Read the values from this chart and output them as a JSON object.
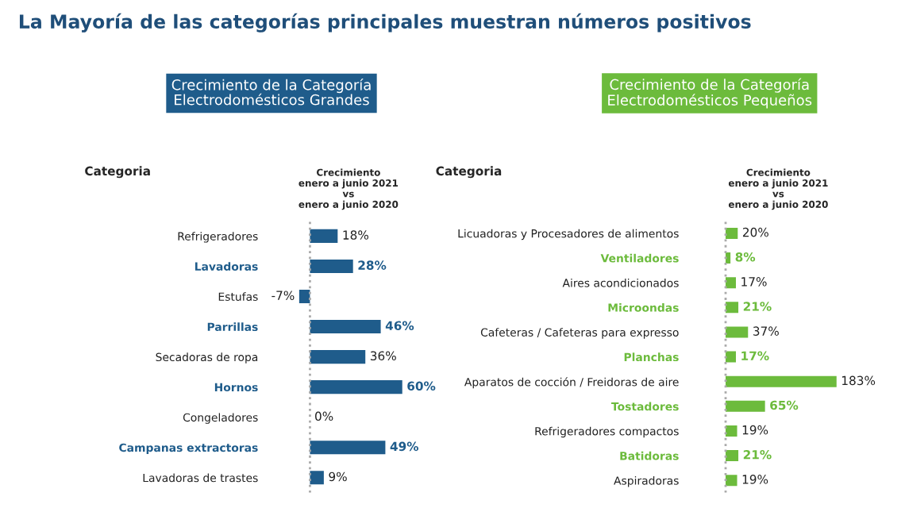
{
  "chart_data": [
    {
      "type": "bar",
      "orientation": "horizontal",
      "title": "Crecimiento de la Categoría\nElectrodomésticos Grandes",
      "xlabel": "Crecimiento\nenero a junio 2021\nvs\nenero a junio 2020",
      "ylabel": "Categoria",
      "annotations": [
        "La Mayoría de las categorías principales muestran números positivos"
      ],
      "categories": [
        "Refrigeradores",
        "Lavadoras",
        "Estufas",
        "Parrillas",
        "Secadoras de ropa",
        "Hornos",
        "Congeladores",
        "Campanas extractoras",
        "Lavadoras de trastes"
      ],
      "series": [
        {
          "color": "#1f5c8b",
          "values": [
            18,
            28,
            -7,
            46,
            36,
            60,
            0,
            49,
            9
          ],
          "value_labels": [
            "18%",
            "28%",
            "-7%",
            "46%",
            "36%",
            "60%",
            "0%",
            "49%",
            "9%"
          ]
        }
      ],
      "ref_lines": [
        {
          "axis": "x",
          "value": 0,
          "color": "#aaaaaa",
          "line_style": "dotted"
        }
      ],
      "tick_labels": "y",
      "grid": false,
      "legend": false
    },
    {
      "type": "bar",
      "orientation": "horizontal",
      "title": "Crecimiento de la Categoría\nElectrodomésticos Pequeños",
      "xlabel": "Crecimiento\nenero a junio 2021\nvs\nenero a junio 2020",
      "ylabel": "Categoria",
      "categories": [
        "Licuadoras y Procesadores de alimentos",
        "Ventiladores",
        "Aires acondicionados",
        "Microondas",
        "Cafeteras / Cafeteras para expresso",
        "Planchas",
        "Aparatos de cocción / Freidoras de aire",
        "Tostadores",
        "Refrigeradores compactos",
        "Batidoras",
        "Aspiradoras"
      ],
      "series": [
        {
          "color": "#6cbb3c",
          "values": [
            20,
            8,
            17,
            21,
            37,
            17,
            183,
            65,
            19,
            21,
            19
          ],
          "value_labels": [
            "20%",
            "8%",
            "17%",
            "21%",
            "37%",
            "17%",
            "183%",
            "65%",
            "19%",
            "21%",
            "19%"
          ]
        }
      ],
      "ref_lines": [
        {
          "axis": "x",
          "value": 0,
          "color": "#aaaaaa",
          "line_style": "dotted"
        }
      ],
      "tick_labels": "y",
      "grid": false,
      "legend": false
    }
  ]
}
